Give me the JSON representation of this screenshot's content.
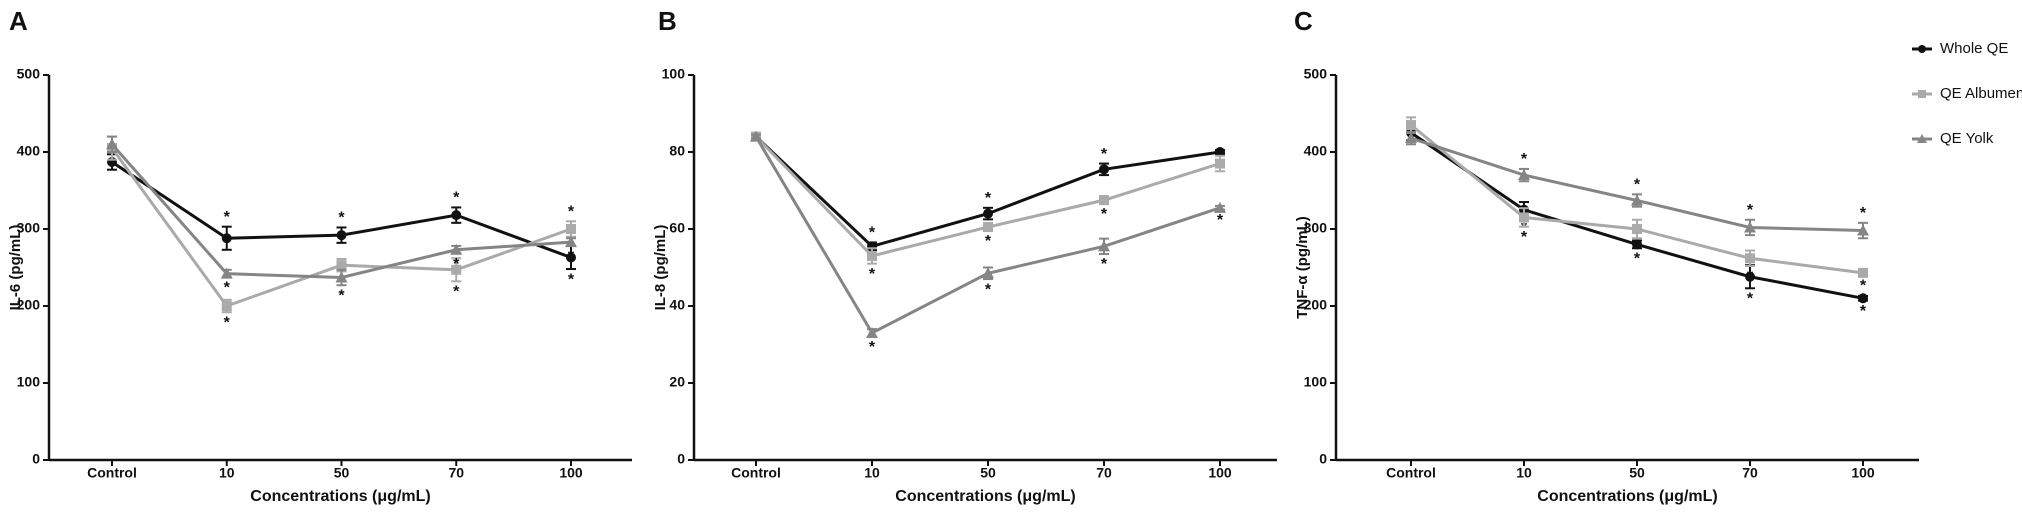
{
  "chart_data": [
    {
      "type": "line",
      "panel_label": "A",
      "y_label": "IL-6 (pg/mL)",
      "x_label": "Concentrations (μg/mL)",
      "categories": [
        "Control",
        "10",
        "50",
        "70",
        "100"
      ],
      "ylim": [
        0,
        500
      ],
      "yticks": [
        0,
        100,
        200,
        300,
        400,
        500
      ],
      "series": [
        {
          "name": "Whole QE",
          "color": "#111111",
          "marker": "circle",
          "values": [
            387,
            288,
            292,
            318,
            263
          ],
          "errors": [
            10,
            15,
            10,
            10,
            15
          ],
          "sig": [
            null,
            "*",
            "*",
            "*",
            "*"
          ]
        },
        {
          "name": "QE Albumen",
          "color": "#aaaaaa",
          "marker": "square",
          "values": [
            405,
            200,
            253,
            247,
            300
          ],
          "errors": [
            15,
            8,
            8,
            15,
            10
          ],
          "sig": [
            null,
            "*",
            "*",
            "*",
            "*"
          ]
        },
        {
          "name": "QE Yolk",
          "color": "#858585",
          "marker": "triangle",
          "values": [
            410,
            242,
            237,
            273,
            283
          ],
          "errors": [
            10,
            5,
            10,
            5,
            5
          ],
          "sig": [
            null,
            "*",
            "*",
            "*",
            "*"
          ]
        }
      ]
    },
    {
      "type": "line",
      "panel_label": "B",
      "y_label": "IL-8 (pg/mL)",
      "x_label": "Concentrations (μg/mL)",
      "categories": [
        "Control",
        "10",
        "50",
        "70",
        "100"
      ],
      "ylim": [
        0,
        100
      ],
      "yticks": [
        0,
        20,
        40,
        60,
        80,
        100
      ],
      "series": [
        {
          "name": "Whole QE",
          "color": "#111111",
          "marker": "circle",
          "values": [
            84,
            55.5,
            64,
            75.5,
            80
          ],
          "errors": [
            0.5,
            1,
            1.5,
            1.5,
            0.5
          ],
          "sig": [
            null,
            "*",
            "*",
            "*",
            null
          ]
        },
        {
          "name": "QE Albumen",
          "color": "#aaaaaa",
          "marker": "square",
          "values": [
            84,
            53,
            60.5,
            67.5,
            77
          ],
          "errors": [
            0.5,
            2,
            1,
            1,
            2
          ],
          "sig": [
            null,
            "*",
            "*",
            "*",
            null
          ]
        },
        {
          "name": "QE Yolk",
          "color": "#858585",
          "marker": "triangle",
          "values": [
            84,
            33,
            48.5,
            55.5,
            65.5
          ],
          "errors": [
            0.5,
            1,
            1.5,
            2,
            0.5
          ],
          "sig": [
            null,
            "*",
            "*",
            "*",
            "*"
          ]
        }
      ]
    },
    {
      "type": "line",
      "panel_label": "C",
      "y_label": "TNF-α (pg/mL)",
      "x_label": "Concentrations (μg/mL)",
      "categories": [
        "Control",
        "10",
        "50",
        "70",
        "100"
      ],
      "ylim": [
        0,
        500
      ],
      "yticks": [
        0,
        100,
        200,
        300,
        400,
        500
      ],
      "legend": "right",
      "series": [
        {
          "name": "Whole QE",
          "color": "#111111",
          "marker": "circle",
          "values": [
            425,
            325,
            280,
            238,
            210
          ],
          "errors": [
            10,
            10,
            5,
            15,
            3
          ],
          "sig": [
            null,
            "*",
            "*",
            "*",
            "*"
          ]
        },
        {
          "name": "QE Albumen",
          "color": "#aaaaaa",
          "marker": "square",
          "values": [
            435,
            315,
            300,
            262,
            243
          ],
          "errors": [
            10,
            12,
            12,
            10,
            3
          ],
          "sig": [
            null,
            "*",
            "*",
            "*",
            "*"
          ]
        },
        {
          "name": "QE Yolk",
          "color": "#858585",
          "marker": "triangle",
          "values": [
            418,
            370,
            337,
            302,
            298
          ],
          "errors": [
            8,
            8,
            8,
            10,
            10
          ],
          "sig": [
            null,
            "*",
            "*",
            "*",
            "*"
          ]
        }
      ]
    }
  ]
}
